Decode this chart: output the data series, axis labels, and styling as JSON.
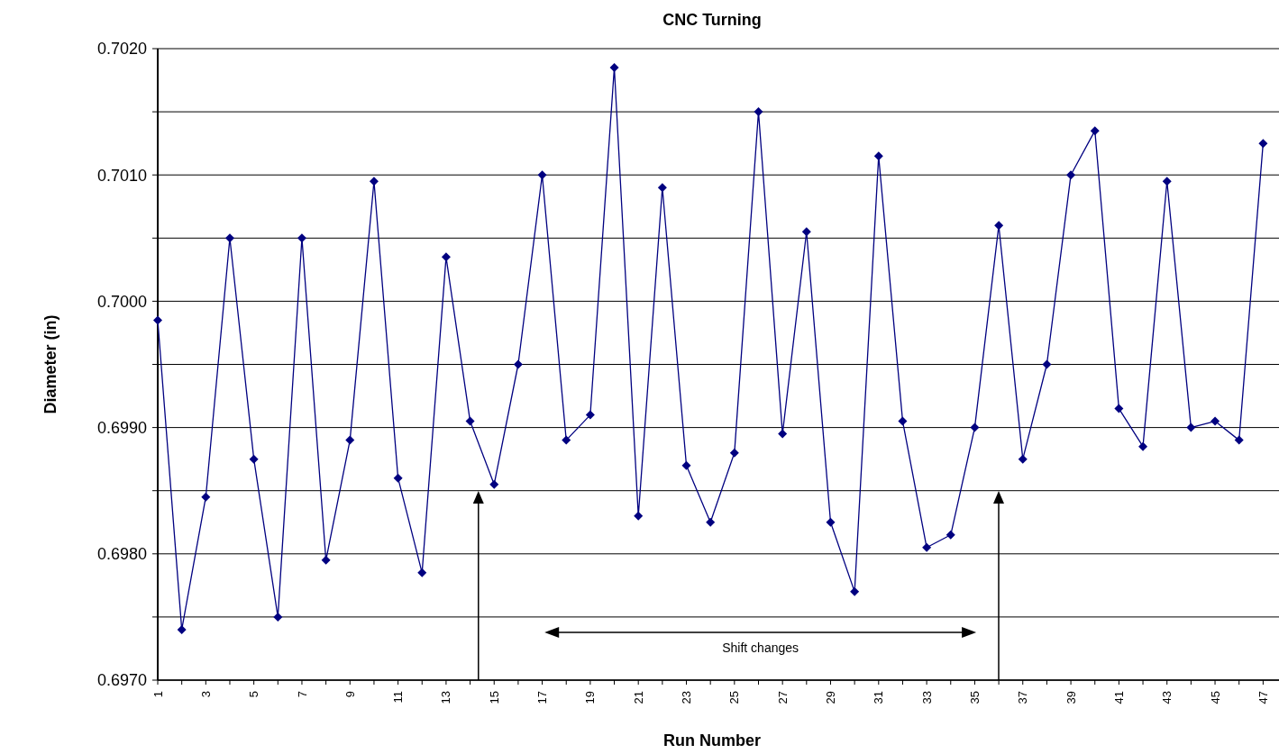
{
  "chart_data": {
    "type": "line",
    "title": "CNC Turning",
    "xlabel": "Run Number",
    "ylabel": "Diameter (in)",
    "categories": [
      "1",
      null,
      "3",
      null,
      "5",
      null,
      "7",
      null,
      "9",
      null,
      "11",
      null,
      "13",
      null,
      "15",
      null,
      "17",
      null,
      "19",
      null,
      "21",
      null,
      "23",
      null,
      "25",
      null,
      "27",
      null,
      "29",
      null,
      "31",
      null,
      "33",
      null,
      "35",
      null,
      "37",
      null,
      "39",
      null,
      "41",
      null,
      "43",
      null,
      "45",
      null,
      "47"
    ],
    "series": [
      {
        "color": "#000080",
        "values": [
          0.69985,
          0.6974,
          0.69845,
          0.7005,
          0.69875,
          0.6975,
          0.7005,
          0.69795,
          0.6989,
          0.70095,
          0.6986,
          0.69785,
          0.70035,
          0.69905,
          0.69855,
          0.6995,
          0.701,
          0.6989,
          0.6991,
          0.70185,
          0.6983,
          0.7009,
          0.6987,
          0.69825,
          0.6988,
          0.7015,
          0.69895,
          0.70055,
          0.69825,
          0.6977,
          0.70115,
          0.69905,
          0.69805,
          0.69815,
          0.699,
          0.7006,
          0.69875,
          0.6995,
          0.701,
          0.70135,
          0.69915,
          0.69885,
          0.70095,
          0.699,
          0.69905,
          0.6989,
          0.70125
        ]
      }
    ],
    "ylim": [
      0.697,
      0.702
    ],
    "yticks": [
      {
        "value": 0.697,
        "label": "0.6970"
      },
      {
        "value": 0.6975,
        "label": null
      },
      {
        "value": 0.698,
        "label": "0.6980"
      },
      {
        "value": 0.6985,
        "label": null
      },
      {
        "value": 0.699,
        "label": "0.6990"
      },
      {
        "value": 0.6995,
        "label": null
      },
      {
        "value": 0.7,
        "label": "0.7000"
      },
      {
        "value": 0.7005,
        "label": null
      },
      {
        "value": 0.701,
        "label": "0.7010"
      },
      {
        "value": 0.7015,
        "label": null
      },
      {
        "value": 0.702,
        "label": "0.7020"
      }
    ],
    "grid": "y",
    "marker": "diamond",
    "line_style": "solid",
    "annotations": [
      "Shift changes"
    ]
  }
}
